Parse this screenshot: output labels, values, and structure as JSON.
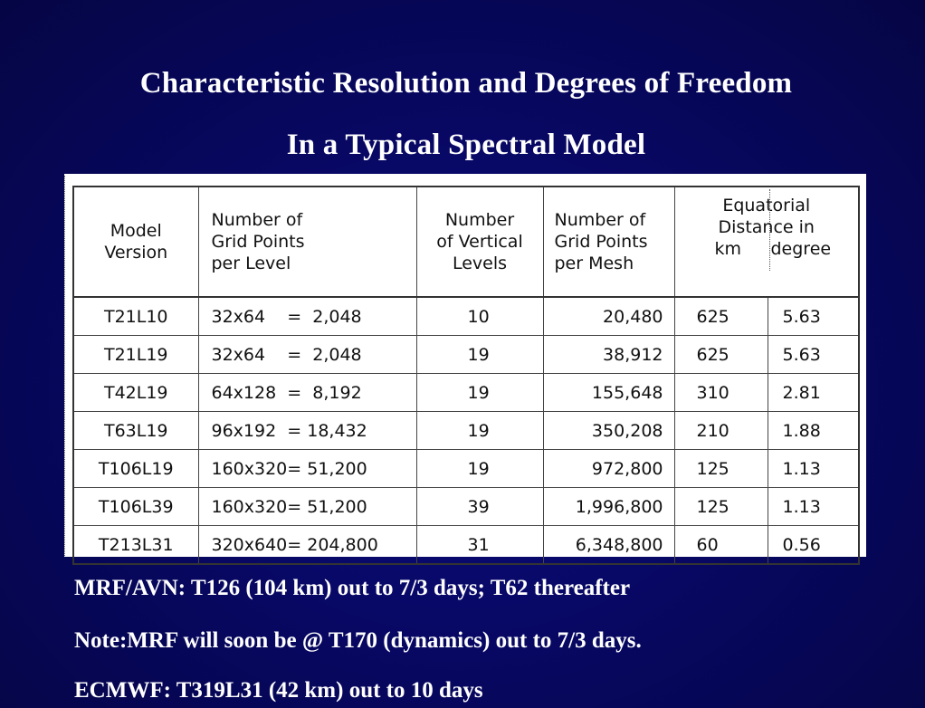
{
  "slide": {
    "title_line1": "Characteristic Resolution and Degrees of Freedom",
    "title_line2": "In a Typical Spectral Model"
  },
  "table": {
    "headers": {
      "model": "Model\nVersion",
      "grid_points_per_level": "Number of\nGrid Points\nper Level",
      "vertical_levels": "Number\nof Vertical\nLevels",
      "grid_points_per_mesh": "Number of\nGrid Points\nper Mesh",
      "equatorial_distance": "Equatorial\nDistance in",
      "km": "km",
      "degree": "degree"
    },
    "rows": [
      {
        "model": "T21L10",
        "grid": "32x64    =  2,048",
        "levels": "10",
        "mesh": "20,480",
        "km": "625",
        "deg": "5.63"
      },
      {
        "model": "T21L19",
        "grid": "32x64    =  2,048",
        "levels": "19",
        "mesh": "38,912",
        "km": "625",
        "deg": "5.63"
      },
      {
        "model": "T42L19",
        "grid": "64x128  =  8,192",
        "levels": "19",
        "mesh": "155,648",
        "km": "310",
        "deg": "2.81"
      },
      {
        "model": "T63L19",
        "grid": "96x192  = 18,432",
        "levels": "19",
        "mesh": "350,208",
        "km": "210",
        "deg": "1.88"
      },
      {
        "model": "T106L19",
        "grid": "160x320= 51,200",
        "levels": "19",
        "mesh": "972,800",
        "km": "125",
        "deg": "1.13"
      },
      {
        "model": "T106L39",
        "grid": "160x320= 51,200",
        "levels": "39",
        "mesh": "1,996,800",
        "km": "125",
        "deg": "1.13"
      },
      {
        "model": "T213L31",
        "grid": "320x640= 204,800",
        "levels": "31",
        "mesh": "6,348,800",
        "km": "60",
        "deg": "0.56"
      }
    ]
  },
  "notes": {
    "line1": "MRF/AVN: T126 (104 km) out to 7/3 days; T62 thereafter",
    "line2": "Note:MRF will soon be @ T170 (dynamics) out to 7/3 days.",
    "line3": "ECMWF: T319L31 (42 km) out to 10 days"
  }
}
